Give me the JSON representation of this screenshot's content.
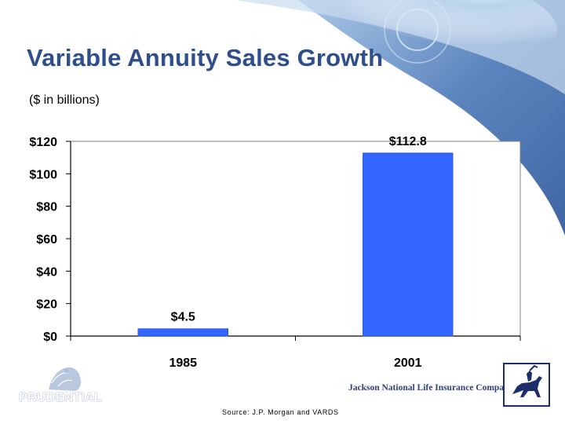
{
  "slide": {
    "title": "Variable Annuity Sales Growth",
    "subtitle": "($ in billions)",
    "source": "Source:  J.P. Morgan and VARDS",
    "prudential_name": "PRUDENTIAL",
    "jackson_name": "Jackson National Life Insurance Company®"
  },
  "icons": {
    "prudential": "prudential-rock-logo-icon",
    "jackson": "jackson-horse-rider-logo-icon"
  },
  "colors": {
    "title": "#2e4e8c",
    "bar": "#3366ff",
    "background_swoosh": "#2f5da3"
  },
  "chart_data": {
    "type": "bar",
    "categories": [
      "1985",
      "2001"
    ],
    "values": [
      4.5,
      112.8
    ],
    "data_labels": [
      "$4.5",
      "$112.8"
    ],
    "ytick_labels": [
      "$0",
      "$20",
      "$40",
      "$60",
      "$80",
      "$100",
      "$120"
    ],
    "yticks": [
      0,
      20,
      40,
      60,
      80,
      100,
      120
    ],
    "ylim": [
      0,
      120
    ],
    "grid": false,
    "legend": "none"
  }
}
